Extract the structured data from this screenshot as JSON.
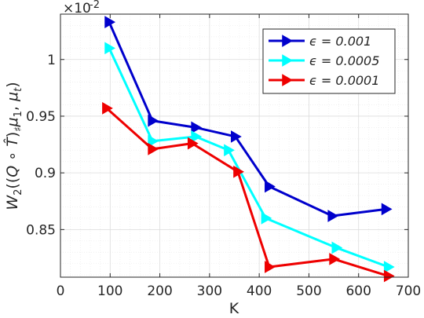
{
  "chart_data": {
    "type": "line",
    "title": "",
    "xlabel": "K",
    "ylabel": "W_2((Q ∘ T̂)_♯ μ_1, μ_t)",
    "xlim": [
      0,
      700
    ],
    "ylim": [
      0.808,
      1.04
    ],
    "y_multiplier": "×10^-2",
    "xticks": [
      0,
      100,
      200,
      300,
      400,
      500,
      600,
      700
    ],
    "xtick_labels": [
      "0",
      "100",
      "200",
      "300",
      "400",
      "500",
      "600",
      "700"
    ],
    "yticks": [
      0.85,
      0.9,
      0.95,
      1.0
    ],
    "ytick_labels": [
      "0.85",
      "0.9",
      "0.95",
      "1"
    ],
    "grid": true,
    "minor_grid": true,
    "legend_position": "top-right",
    "series": [
      {
        "name": "ϵ = 0.001",
        "color": "#0000cc",
        "marker": "triangle-right",
        "x": [
          98,
          185,
          272,
          352,
          420,
          547,
          655
        ],
        "y": [
          1.033,
          0.946,
          0.94,
          0.932,
          0.888,
          0.862,
          0.868
        ]
      },
      {
        "name": "ϵ = 0.0005",
        "color": "#00ffff",
        "marker": "triangle-right",
        "x": [
          98,
          185,
          272,
          338,
          413,
          555,
          660
        ],
        "y": [
          1.01,
          0.928,
          0.932,
          0.92,
          0.86,
          0.834,
          0.817
        ]
      },
      {
        "name": "ϵ = 0.0001",
        "color": "#ee0000",
        "marker": "triangle-right",
        "x": [
          93,
          185,
          265,
          357,
          420,
          550,
          660
        ],
        "y": [
          0.957,
          0.921,
          0.926,
          0.901,
          0.817,
          0.824,
          0.809
        ]
      }
    ]
  }
}
